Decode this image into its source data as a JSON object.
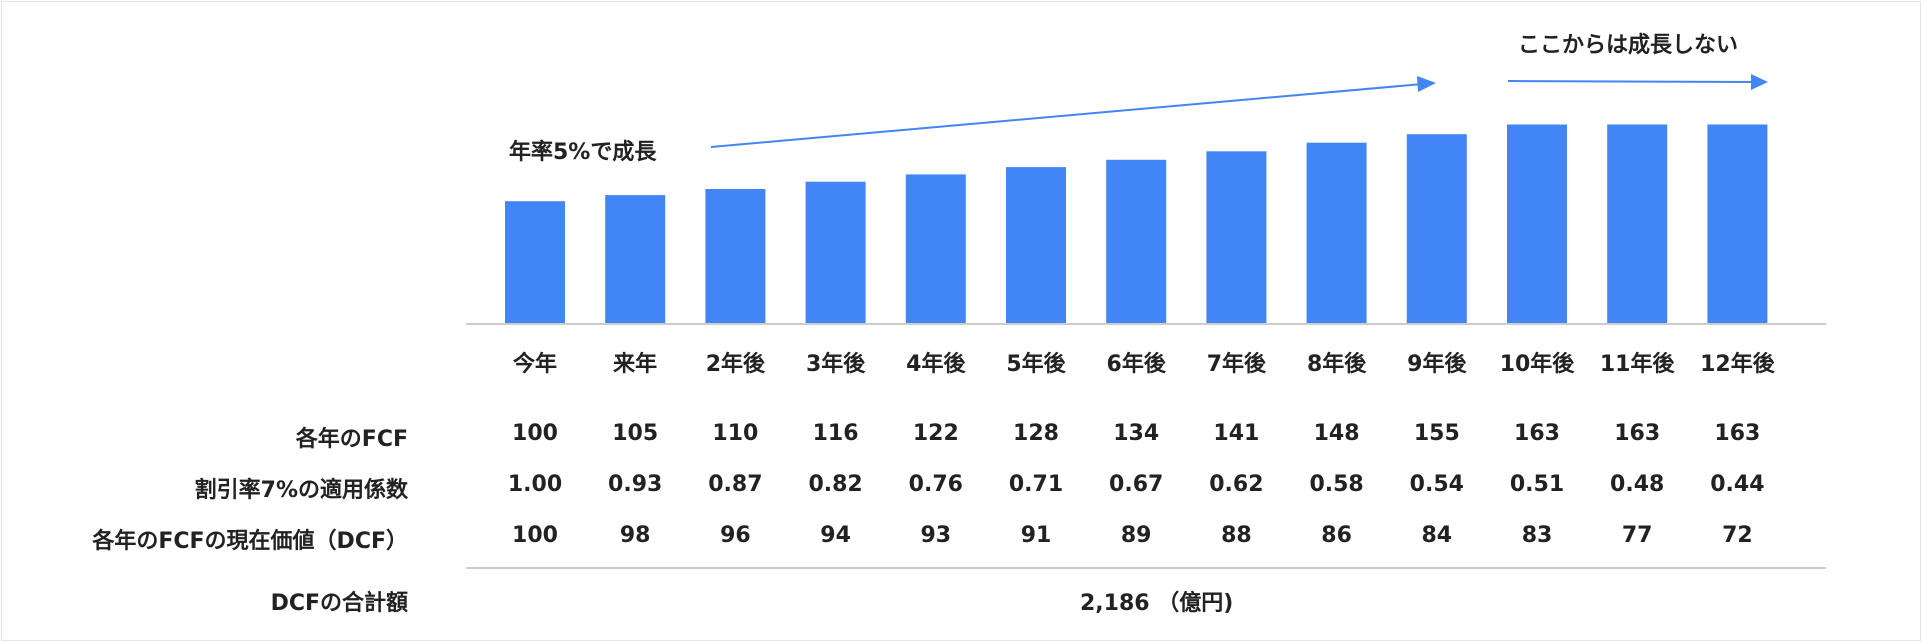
{
  "chart_data": {
    "type": "bar",
    "categories": [
      "今年",
      "来年",
      "2年後",
      "3年後",
      "4年後",
      "5年後",
      "6年後",
      "7年後",
      "8年後",
      "9年後",
      "10年後",
      "11年後",
      "12年後"
    ],
    "values": [
      100,
      105,
      110,
      116,
      122,
      128,
      134,
      141,
      148,
      155,
      163,
      163,
      163
    ],
    "bar_color": "#4285F4",
    "arrow_color": "#4285F4",
    "axis_color": "#cccccc",
    "annotations": {
      "growth": "年率5%で成長",
      "no_growth": "ここからは成長しない"
    },
    "table": {
      "rows": [
        {
          "label": "各年のFCF",
          "values": [
            "100",
            "105",
            "110",
            "116",
            "122",
            "128",
            "134",
            "141",
            "148",
            "155",
            "163",
            "163",
            "163"
          ]
        },
        {
          "label": "割引率7%の適用係数",
          "values": [
            "1.00",
            "0.93",
            "0.87",
            "0.82",
            "0.76",
            "0.71",
            "0.67",
            "0.62",
            "0.58",
            "0.54",
            "0.51",
            "0.48",
            "0.44"
          ]
        },
        {
          "label": "各年のFCFの現在価値（DCF）",
          "values": [
            "100",
            "98",
            "96",
            "94",
            "93",
            "91",
            "89",
            "88",
            "86",
            "84",
            "83",
            "77",
            "72"
          ]
        }
      ],
      "total_label": "DCFの合計額",
      "total_value": "2,186 （億円)"
    }
  }
}
